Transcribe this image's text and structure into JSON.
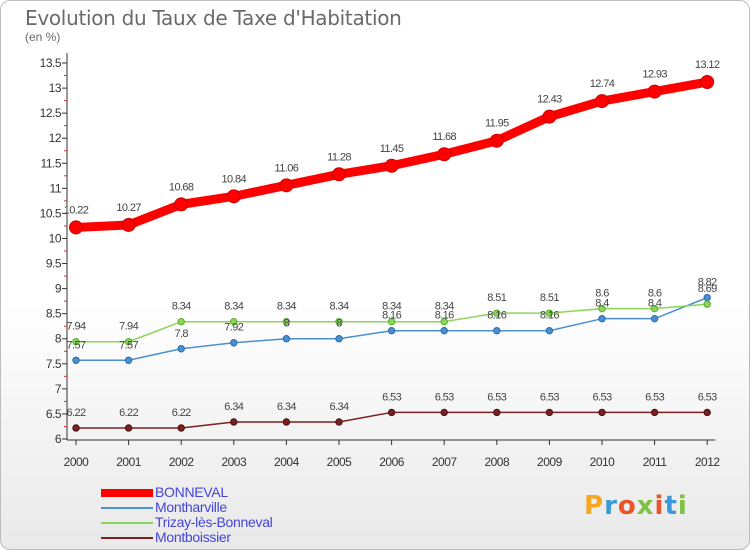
{
  "title": "Evolution du Taux de Taxe d'Habitation",
  "unit_label": "(en %)",
  "logo": {
    "text": "Proxiti",
    "letter_colors": [
      "#f5a623",
      "#3a9ad9",
      "#e8552a",
      "#7dc242",
      "#e8552a",
      "#3a9ad9",
      "#7dc242"
    ]
  },
  "chart_data": {
    "type": "line",
    "x": [
      "2000",
      "2001",
      "2002",
      "2003",
      "2004",
      "2005",
      "2006",
      "2007",
      "2008",
      "2009",
      "2010",
      "2011",
      "2012"
    ],
    "ylim": [
      6,
      13.5
    ],
    "y_ticks": [
      "6",
      "6.5",
      "7",
      "7.5",
      "8",
      "8.5",
      "9",
      "9.5",
      "10",
      "10.5",
      "11",
      "11.5",
      "12",
      "12.5",
      "13",
      "13.5"
    ],
    "grid": false,
    "legend_position": "bottom-left",
    "series": [
      {
        "name": "BONNEVAL",
        "color": "#ff0000",
        "values": [
          10.22,
          10.27,
          10.68,
          10.84,
          11.06,
          11.28,
          11.45,
          11.68,
          11.95,
          12.43,
          12.74,
          12.93,
          13.12
        ],
        "labels": [
          "10.22",
          "10.27",
          "10.68",
          "10.84",
          "11.06",
          "11.28",
          "11.45",
          "11.68",
          "11.95",
          "12.43",
          "12.74",
          "12.93",
          "13.12"
        ]
      },
      {
        "name": "Montharville",
        "color": "#4a90d0",
        "values": [
          7.57,
          7.57,
          7.8,
          7.92,
          8,
          8,
          8.16,
          8.16,
          8.16,
          8.16,
          8.4,
          8.4,
          8.82
        ],
        "labels": [
          "7.57",
          "7.57",
          "7.8",
          "7.92",
          "8",
          "8",
          "8.16",
          "8.16",
          "8.16",
          "8.16",
          "8.4",
          "8.4",
          "8.82"
        ]
      },
      {
        "name": "Trizay-lès-Bonneval",
        "color": "#8dd45a",
        "values": [
          7.94,
          7.94,
          8.34,
          8.34,
          8.34,
          8.34,
          8.34,
          8.34,
          8.51,
          8.51,
          8.6,
          8.6,
          8.69
        ],
        "labels": [
          "7.94",
          "7.94",
          "8.34",
          "8.34",
          "8.34",
          "8.34",
          "8.34",
          "8.34",
          "8.51",
          "8.51",
          "8.6",
          "8.6",
          "8.69"
        ]
      },
      {
        "name": "Montboissier",
        "color": "#7a2020",
        "values": [
          6.22,
          6.22,
          6.22,
          6.34,
          6.34,
          6.34,
          6.53,
          6.53,
          6.53,
          6.53,
          6.53,
          6.53,
          6.53
        ],
        "labels": [
          "6.22",
          "6.22",
          "6.22",
          "6.34",
          "6.34",
          "6.34",
          "6.53",
          "6.53",
          "6.53",
          "6.53",
          "6.53",
          "6.53",
          "6.53"
        ]
      }
    ]
  }
}
